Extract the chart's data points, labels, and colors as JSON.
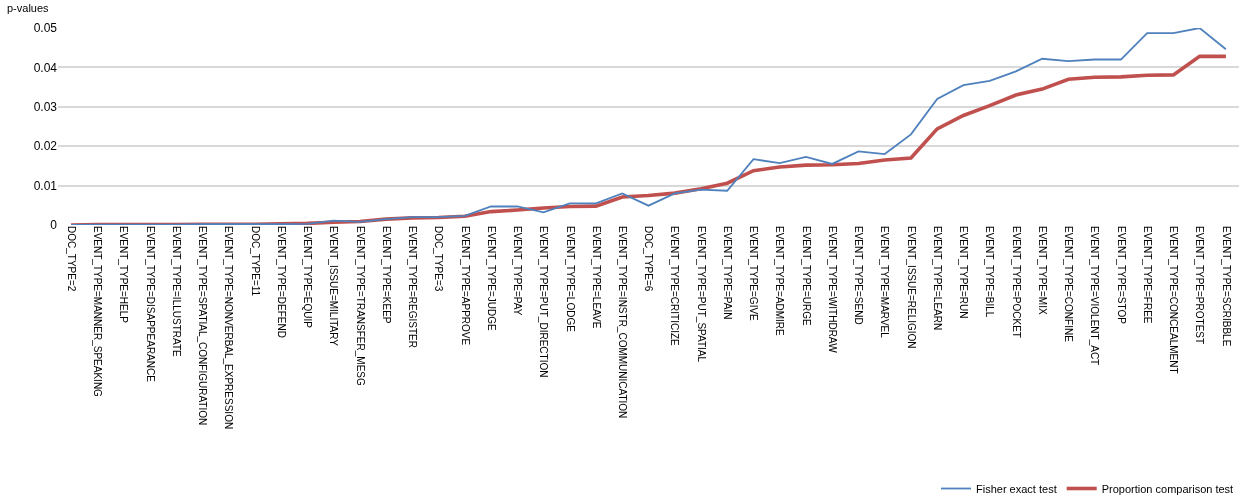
{
  "chart_data": {
    "type": "line",
    "ylabel": "p-values",
    "categories": [
      "DOC_TYPE=2",
      "EVENT_TYPE=MANNER_SPEAKING",
      "EVENT_TYPE=HELP",
      "EVENT_TYPE=DISAPPEARANCE",
      "EVENT_TYPE=ILLUSTRATE",
      "EVENT_TYPE=SPATIAL_CONFIGURATION",
      "EVENT_TYPE=NONVERBAL_EXPRESSION",
      "DOC_TYPE=11",
      "EVENT_TYPE=DEFEND",
      "EVENT_TYPE=EQUIP",
      "EVENT_ISSUE=MILITARY",
      "EVENT_TYPE=TRANSFER_MESG",
      "EVENT_TYPE=KEEP",
      "EVENT_TYPE=REGISTER",
      "DOC_TYPE=3",
      "EVENT_TYPE=APPROVE",
      "EVENT_TYPE=JUDGE",
      "EVENT_TYPE=PAY",
      "EVENT_TYPE=PUT_DIRECTION",
      "EVENT_TYPE=LODGE",
      "EVENT_TYPE=LEAVE",
      "EVENT_TYPE=INSTR_COMMUNICATION",
      "DOC_TYPE=6",
      "EVENT_TYPE=CRITICIZE",
      "EVENT_TYPE=PUT_SPATIAL",
      "EVENT_TYPE=PAIN",
      "EVENT_TYPE=GIVE",
      "EVENT_TYPE=ADMIRE",
      "EVENT_TYPE=URGE",
      "EVENT_TYPE=WITHDRAW",
      "EVENT_TYPE=SEND",
      "EVENT_TYPE=MARVEL",
      "EVENT_ISSUE=RELIGION",
      "EVENT_TYPE=LEARN",
      "EVENT_TYPE=RUN",
      "EVENT_TYPE=BILL",
      "EVENT_TYPE=POCKET",
      "EVENT_TYPE=MIX",
      "EVENT_TYPE=CONFINE",
      "EVENT_TYPE=VIOLENT_ACT",
      "EVENT_TYPE=STOP",
      "EVENT_TYPE=FREE",
      "EVENT_TYPE=CONCEALMENT",
      "EVENT_TYPE=PROTEST",
      "EVENT_TYPE=SCRIBBLE"
    ],
    "series": [
      {
        "name": "Fisher exact test",
        "color": "#4f81bd",
        "values": [
          0,
          0.0001,
          0.0001,
          0.0001,
          0.0001,
          0.0002,
          0.0002,
          0.0002,
          0.0002,
          0.0003,
          0.0011,
          0.0008,
          0.0015,
          0.002,
          0.002,
          0.0023,
          0.0047,
          0.0047,
          0.0032,
          0.0055,
          0.0055,
          0.008,
          0.0049,
          0.008,
          0.009,
          0.0087,
          0.0167,
          0.0157,
          0.0173,
          0.0155,
          0.0187,
          0.018,
          0.023,
          0.032,
          0.0355,
          0.0366,
          0.039,
          0.0422,
          0.0416,
          0.042,
          0.042,
          0.0487,
          0.0487,
          0.05,
          0.0446
        ]
      },
      {
        "name": "Proportion comparison test",
        "color": "#c0504d",
        "values": [
          0,
          0.0001,
          0.0001,
          0.0001,
          0.0001,
          0.0002,
          0.0002,
          0.0002,
          0.0003,
          0.0004,
          0.0007,
          0.0009,
          0.0015,
          0.0018,
          0.0019,
          0.0022,
          0.0034,
          0.0038,
          0.0043,
          0.0047,
          0.0048,
          0.0071,
          0.0075,
          0.0081,
          0.0092,
          0.0106,
          0.0138,
          0.0147,
          0.0152,
          0.0153,
          0.0156,
          0.0165,
          0.017,
          0.0244,
          0.0278,
          0.0303,
          0.033,
          0.0345,
          0.037,
          0.0375,
          0.0376,
          0.038,
          0.0381,
          0.0428,
          0.0428
        ]
      }
    ],
    "ylim": [
      0,
      0.05
    ],
    "yticks": [
      0,
      0.01,
      0.02,
      0.03,
      0.04,
      0.05
    ],
    "grid": "y",
    "legend": "bottom right",
    "marker": "none",
    "line_style": "solid"
  }
}
